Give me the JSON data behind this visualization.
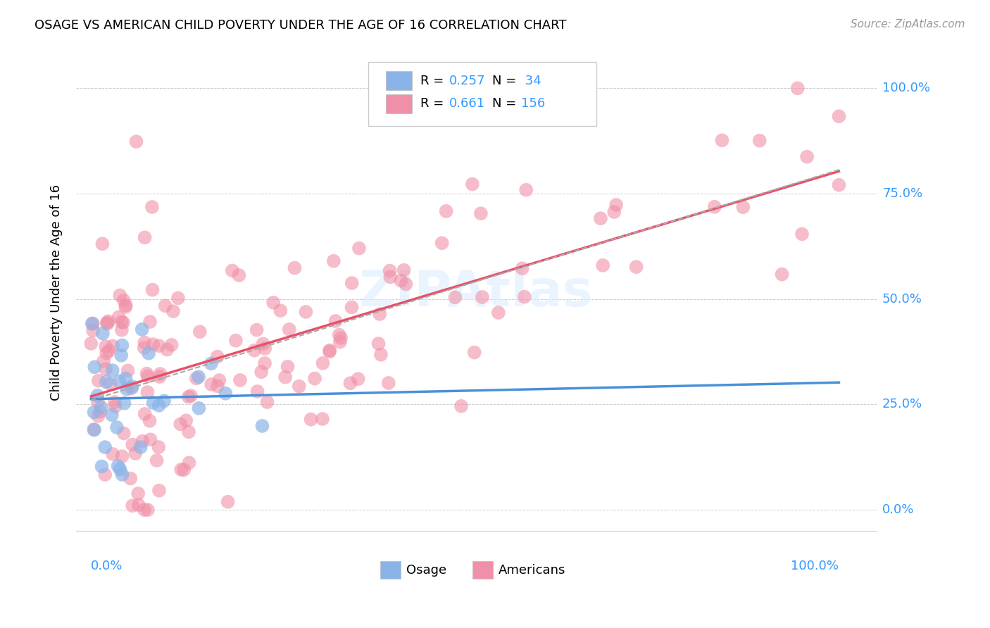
{
  "title": "OSAGE VS AMERICAN CHILD POVERTY UNDER THE AGE OF 16 CORRELATION CHART",
  "source": "Source: ZipAtlas.com",
  "ylabel": "Child Poverty Under the Age of 16",
  "osage_color": "#8ab4e8",
  "americans_color": "#f090a8",
  "osage_line_color": "#4a90d9",
  "americans_line_color": "#e8506a",
  "trend_line_dashed_color": "#aaaaaa",
  "r_osage": 0.257,
  "n_osage": 34,
  "r_americans": 0.661,
  "n_americans": 156
}
